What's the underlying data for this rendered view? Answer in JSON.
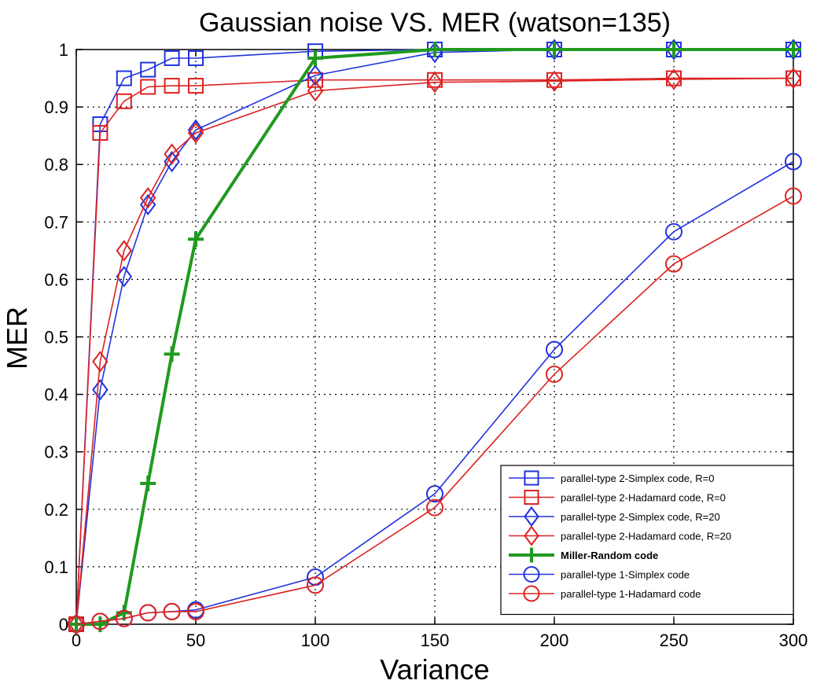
{
  "chart_data": {
    "type": "line",
    "title": "Gaussian noise VS. MER (watson=135)",
    "xlabel": "Variance",
    "ylabel": "MER",
    "xlim": [
      0,
      300
    ],
    "ylim": [
      0,
      1
    ],
    "grid": true,
    "legend_position": "bottom-right",
    "xticks": [
      "0",
      "50",
      "100",
      "150",
      "200",
      "250",
      "300"
    ],
    "yticks": [
      "0",
      "0.1",
      "0.2",
      "0.3",
      "0.4",
      "0.5",
      "0.6",
      "0.7",
      "0.8",
      "0.9",
      "1"
    ],
    "series": [
      {
        "name": "parallel-type 2-Simplex code, R=0",
        "color": "#2233dd",
        "marker": "square",
        "x": [
          0,
          10,
          20,
          30,
          40,
          50,
          100,
          150,
          200,
          250,
          300
        ],
        "y": [
          0.0,
          0.87,
          0.95,
          0.965,
          0.985,
          0.985,
          0.997,
          1.0,
          1.0,
          1.0,
          1.0
        ]
      },
      {
        "name": "parallel-type 2-Hadamard code, R=0",
        "color": "#dd2222",
        "marker": "square",
        "x": [
          0,
          10,
          20,
          30,
          40,
          50,
          100,
          150,
          200,
          250,
          300
        ],
        "y": [
          0.0,
          0.855,
          0.91,
          0.935,
          0.937,
          0.937,
          0.947,
          0.947,
          0.947,
          0.95,
          0.95
        ]
      },
      {
        "name": "parallel-type 2-Simplex code, R=20",
        "color": "#2233dd",
        "marker": "diamond",
        "x": [
          0,
          10,
          20,
          30,
          40,
          50,
          100,
          150,
          200,
          250,
          300
        ],
        "y": [
          0.0,
          0.408,
          0.605,
          0.73,
          0.805,
          0.86,
          0.955,
          0.995,
          1.0,
          1.0,
          1.0
        ]
      },
      {
        "name": "parallel-type 2-Hadamard code, R=20",
        "color": "#dd2222",
        "marker": "diamond",
        "x": [
          0,
          10,
          20,
          30,
          40,
          50,
          100,
          150,
          200,
          250,
          300
        ],
        "y": [
          0.0,
          0.457,
          0.65,
          0.742,
          0.818,
          0.855,
          0.928,
          0.943,
          0.945,
          0.948,
          0.95
        ]
      },
      {
        "name": "Miller-Random code",
        "color": "#1f9a1f",
        "marker": "plus",
        "bold": true,
        "x": [
          0,
          10,
          20,
          30,
          40,
          50,
          100,
          150,
          200,
          250,
          300
        ],
        "y": [
          0.0,
          0.0,
          0.02,
          0.245,
          0.47,
          0.67,
          0.985,
          1.0,
          1.0,
          1.0,
          1.0
        ]
      },
      {
        "name": "parallel-type 1-Simplex code",
        "color": "#2233dd",
        "marker": "circle",
        "x": [
          0,
          10,
          20,
          30,
          40,
          50,
          100,
          150,
          200,
          250,
          300
        ],
        "y": [
          0.0,
          0.005,
          0.01,
          0.02,
          0.022,
          0.025,
          0.082,
          0.227,
          0.478,
          0.683,
          0.805
        ]
      },
      {
        "name": "parallel-type 1-Hadamard code",
        "color": "#dd2222",
        "marker": "circle",
        "x": [
          0,
          10,
          20,
          30,
          40,
          50,
          100,
          150,
          200,
          250,
          300
        ],
        "y": [
          0.0,
          0.005,
          0.01,
          0.02,
          0.022,
          0.022,
          0.068,
          0.203,
          0.435,
          0.627,
          0.745
        ]
      }
    ]
  }
}
